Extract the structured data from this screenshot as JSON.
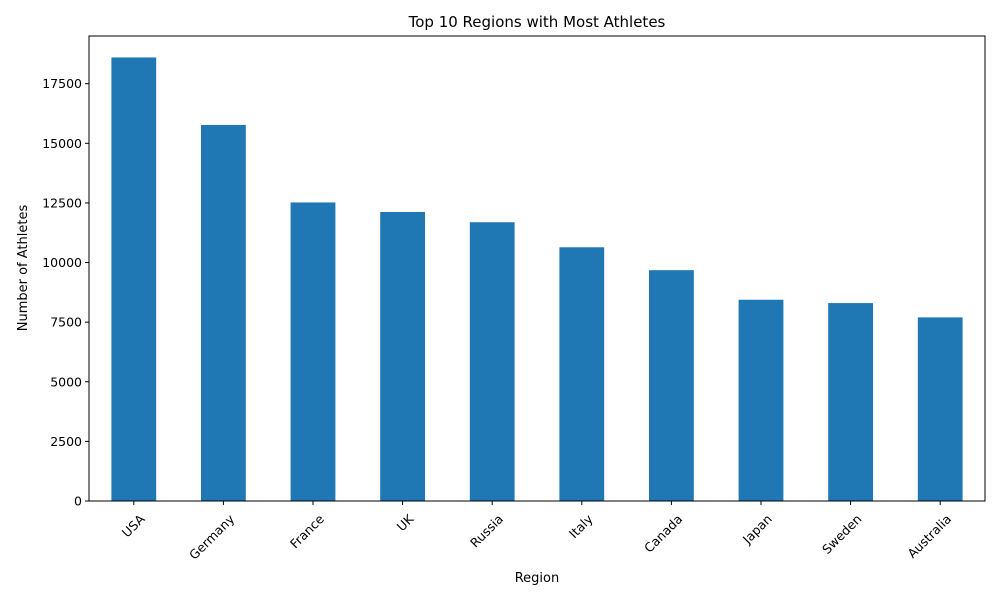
{
  "chart_data": {
    "type": "bar",
    "title": "Top 10 Regions with Most Athletes",
    "xlabel": "Region",
    "ylabel": "Number of Athletes",
    "categories": [
      "USA",
      "Germany",
      "France",
      "UK",
      "Russia",
      "Italy",
      "Canada",
      "Japan",
      "Sweden",
      "Australia"
    ],
    "values": [
      18600,
      15770,
      12520,
      12120,
      11690,
      10640,
      9680,
      8440,
      8300,
      7700
    ],
    "ylim": [
      0,
      19500
    ],
    "yticks": [
      0,
      2500,
      5000,
      7500,
      10000,
      12500,
      15000,
      17500
    ],
    "bar_color": "#1f77b4",
    "grid": false,
    "legend": "none",
    "x_tick_rotation": 45
  }
}
